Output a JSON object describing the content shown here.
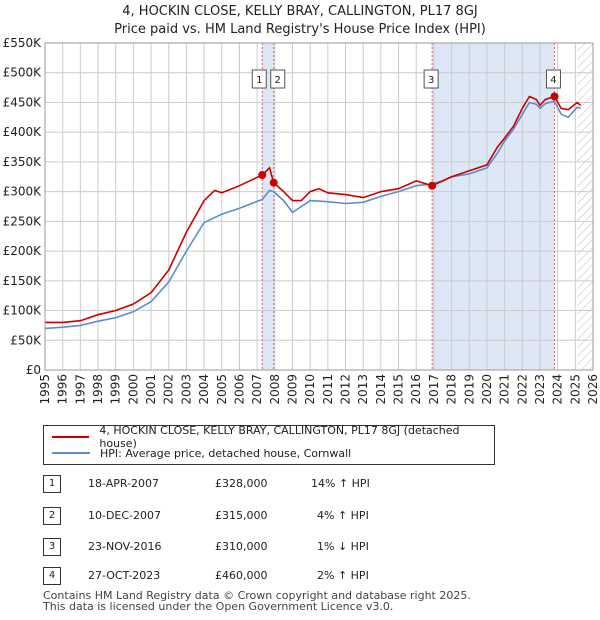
{
  "header": {
    "line1": "4, HOCKIN CLOSE, KELLY BRAY, CALLINGTON, PL17 8GJ",
    "line2": "Price paid vs. HM Land Registry's House Price Index (HPI)"
  },
  "colors": {
    "price_paid": "#cc0000",
    "hpi": "#5b8fcb",
    "shade": "#dde7f6",
    "marker_line": "#e06070"
  },
  "chart_data": {
    "type": "line",
    "title": "Price paid vs. HM Land Registry's House Price Index (HPI)",
    "xlabel": "",
    "ylabel": "",
    "xlim": [
      1995,
      2026
    ],
    "ylim": [
      0,
      550000
    ],
    "x_ticks": [
      "1995",
      "1996",
      "1997",
      "1998",
      "1999",
      "2000",
      "2001",
      "2002",
      "2003",
      "2004",
      "2005",
      "2006",
      "2007",
      "2008",
      "2009",
      "2010",
      "2011",
      "2012",
      "2013",
      "2014",
      "2015",
      "2016",
      "2017",
      "2018",
      "2019",
      "2020",
      "2021",
      "2022",
      "2023",
      "2024",
      "2025",
      "2026"
    ],
    "y_ticks": [
      {
        "value": 0,
        "label": "£0"
      },
      {
        "value": 50000,
        "label": "£50K"
      },
      {
        "value": 100000,
        "label": "£100K"
      },
      {
        "value": 150000,
        "label": "£150K"
      },
      {
        "value": 200000,
        "label": "£200K"
      },
      {
        "value": 250000,
        "label": "£250K"
      },
      {
        "value": 300000,
        "label": "£300K"
      },
      {
        "value": 350000,
        "label": "£350K"
      },
      {
        "value": 400000,
        "label": "£400K"
      },
      {
        "value": 450000,
        "label": "£450K"
      },
      {
        "value": 500000,
        "label": "£500K"
      },
      {
        "value": 550000,
        "label": "£550K"
      }
    ],
    "grid": true,
    "shaded_ranges": [
      [
        2007.29,
        2007.94
      ],
      [
        2016.9,
        2023.82
      ]
    ],
    "hatched_from": 2025.1,
    "series": [
      {
        "name": "4, HOCKIN CLOSE, KELLY BRAY, CALLINGTON, PL17 8GJ (detached house)",
        "points": [
          [
            1995,
            80000
          ],
          [
            1996,
            80000
          ],
          [
            1997,
            83000
          ],
          [
            1998,
            93000
          ],
          [
            1999,
            100000
          ],
          [
            2000,
            111000
          ],
          [
            2001,
            130000
          ],
          [
            2002,
            168000
          ],
          [
            2003,
            232000
          ],
          [
            2004,
            285000
          ],
          [
            2004.6,
            302000
          ],
          [
            2005,
            298000
          ],
          [
            2006,
            310000
          ],
          [
            2007.29,
            328000
          ],
          [
            2007.7,
            340000
          ],
          [
            2007.94,
            315000
          ],
          [
            2008.5,
            300000
          ],
          [
            2009,
            285000
          ],
          [
            2009.5,
            285000
          ],
          [
            2010,
            300000
          ],
          [
            2010.5,
            305000
          ],
          [
            2011,
            298000
          ],
          [
            2012,
            295000
          ],
          [
            2013,
            290000
          ],
          [
            2014,
            300000
          ],
          [
            2015,
            305000
          ],
          [
            2016,
            318000
          ],
          [
            2016.9,
            310000
          ],
          [
            2017.5,
            318000
          ],
          [
            2018,
            325000
          ],
          [
            2019,
            335000
          ],
          [
            2020,
            345000
          ],
          [
            2020.6,
            375000
          ],
          [
            2021,
            390000
          ],
          [
            2021.5,
            410000
          ],
          [
            2022,
            440000
          ],
          [
            2022.4,
            460000
          ],
          [
            2022.8,
            455000
          ],
          [
            2023,
            445000
          ],
          [
            2023.3,
            455000
          ],
          [
            2023.82,
            460000
          ],
          [
            2024.2,
            440000
          ],
          [
            2024.6,
            438000
          ],
          [
            2025.1,
            450000
          ],
          [
            2025.3,
            445000
          ]
        ]
      },
      {
        "name": "HPI: Average price, detached house, Cornwall",
        "points": [
          [
            1995,
            70000
          ],
          [
            1996,
            72000
          ],
          [
            1997,
            75000
          ],
          [
            1998,
            82000
          ],
          [
            1999,
            88000
          ],
          [
            2000,
            98000
          ],
          [
            2001,
            115000
          ],
          [
            2002,
            148000
          ],
          [
            2003,
            200000
          ],
          [
            2004,
            248000
          ],
          [
            2005,
            262000
          ],
          [
            2006,
            272000
          ],
          [
            2007.29,
            287000
          ],
          [
            2007.7,
            302000
          ],
          [
            2007.94,
            300000
          ],
          [
            2008.5,
            285000
          ],
          [
            2009,
            265000
          ],
          [
            2010,
            285000
          ],
          [
            2011,
            283000
          ],
          [
            2012,
            280000
          ],
          [
            2013,
            282000
          ],
          [
            2014,
            292000
          ],
          [
            2015,
            300000
          ],
          [
            2016,
            310000
          ],
          [
            2016.9,
            313000
          ],
          [
            2017.5,
            318000
          ],
          [
            2018,
            325000
          ],
          [
            2019,
            330000
          ],
          [
            2020,
            340000
          ],
          [
            2020.6,
            365000
          ],
          [
            2021,
            385000
          ],
          [
            2021.5,
            405000
          ],
          [
            2022,
            430000
          ],
          [
            2022.4,
            450000
          ],
          [
            2022.8,
            447000
          ],
          [
            2023,
            440000
          ],
          [
            2023.3,
            448000
          ],
          [
            2023.82,
            452000
          ],
          [
            2024.2,
            430000
          ],
          [
            2024.6,
            425000
          ],
          [
            2025.1,
            442000
          ],
          [
            2025.3,
            440000
          ]
        ]
      }
    ],
    "sales": [
      {
        "label": "1",
        "date": 2007.29,
        "price": 328000
      },
      {
        "label": "2",
        "date": 2007.94,
        "price": 315000
      },
      {
        "label": "3",
        "date": 2016.9,
        "price": 310000
      },
      {
        "label": "4",
        "date": 2023.82,
        "price": 460000
      }
    ]
  },
  "legend": [
    {
      "label": "4, HOCKIN CLOSE, KELLY BRAY, CALLINGTON, PL17 8GJ (detached house)",
      "color": "#cc0000"
    },
    {
      "label": "HPI: Average price, detached house, Cornwall",
      "color": "#5b8fcb"
    }
  ],
  "transactions": [
    {
      "num": "1",
      "date": "18-APR-2007",
      "price": "£328,000",
      "hpi": "14% ↑ HPI"
    },
    {
      "num": "2",
      "date": "10-DEC-2007",
      "price": "£315,000",
      "hpi": "4% ↑ HPI"
    },
    {
      "num": "3",
      "date": "23-NOV-2016",
      "price": "£310,000",
      "hpi": "1% ↓ HPI"
    },
    {
      "num": "4",
      "date": "27-OCT-2023",
      "price": "£460,000",
      "hpi": "2% ↑ HPI"
    }
  ],
  "footer": {
    "line1": "Contains HM Land Registry data © Crown copyright and database right 2025.",
    "line2": "This data is licensed under the Open Government Licence v3.0."
  }
}
